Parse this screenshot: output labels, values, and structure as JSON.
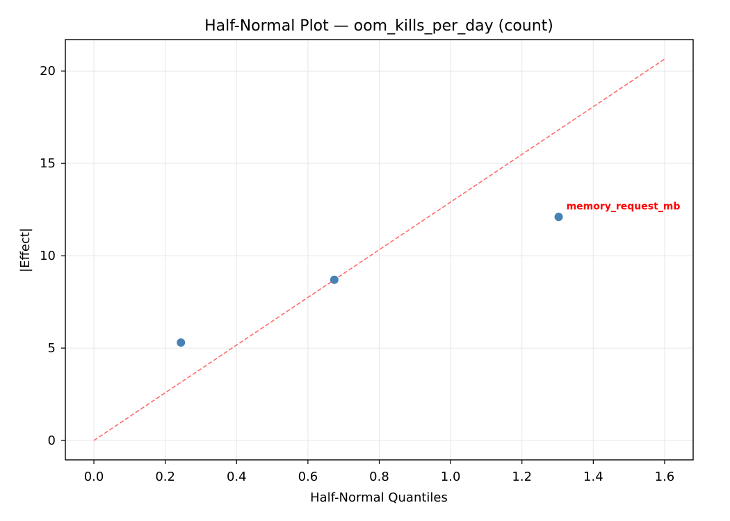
{
  "chart_data": {
    "type": "scatter",
    "title": "Half-Normal Plot — oom_kills_per_day (count)",
    "xlabel": "Half-Normal Quantiles",
    "ylabel": "|Effect|",
    "xlim": [
      -0.08,
      1.68
    ],
    "ylim": [
      -1.05,
      21.7
    ],
    "xticks": [
      0.0,
      0.2,
      0.4,
      0.6,
      0.8,
      1.0,
      1.2,
      1.4,
      1.6
    ],
    "xtick_labels": [
      "0.0",
      "0.2",
      "0.4",
      "0.6",
      "0.8",
      "1.0",
      "1.2",
      "1.4",
      "1.6"
    ],
    "yticks": [
      0,
      5,
      10,
      15,
      20
    ],
    "ytick_labels": [
      "0",
      "5",
      "10",
      "15",
      "20"
    ],
    "grid": true,
    "points": [
      {
        "x": 0.244,
        "y": 5.3,
        "label": ""
      },
      {
        "x": 0.674,
        "y": 8.7,
        "label": ""
      },
      {
        "x": 1.303,
        "y": 12.1,
        "label": "memory_request_mb"
      }
    ],
    "reference_line": {
      "x": [
        0.0,
        1.604
      ],
      "y": [
        0.0,
        20.7
      ],
      "style": "dashed"
    },
    "colors": {
      "points": "#4682b4",
      "reference_line": "#ff6b6b",
      "annotation": "#ff0000",
      "grid": "#e6e6e6"
    }
  }
}
